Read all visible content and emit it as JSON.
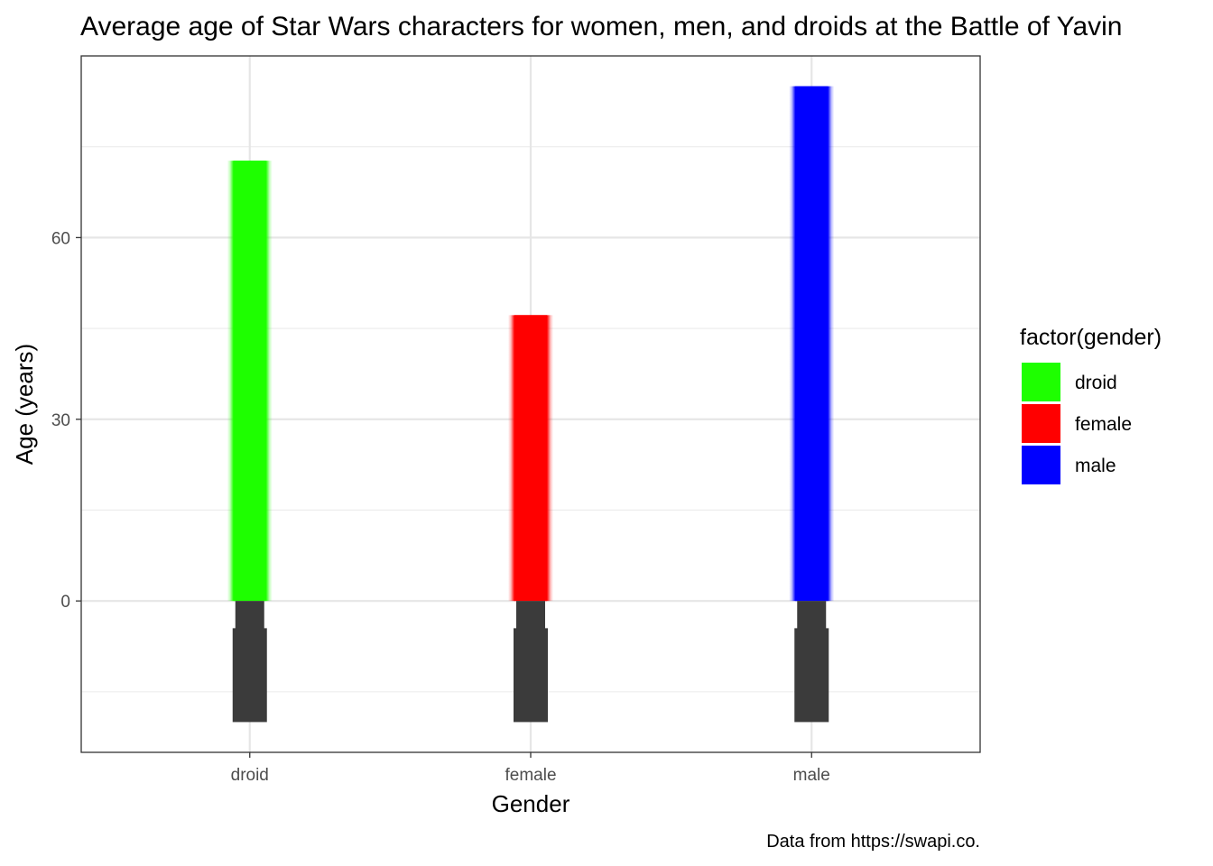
{
  "chart_data": {
    "type": "bar",
    "title": "Average age of Star Wars characters for women, men, and droids at the Battle of Yavin",
    "xlabel": "Gender",
    "ylabel": "Age (years)",
    "caption": "Data from https://swapi.co.",
    "categories": [
      "droid",
      "female",
      "male"
    ],
    "values": [
      72.7,
      47.2,
      85.0
    ],
    "colors": [
      "#1eff00",
      "#ff0000",
      "#0000ff"
    ],
    "hilt_color": "#3b3b3b",
    "ylim": [
      -25,
      90
    ],
    "yticks": [
      0,
      30,
      60
    ],
    "grid": true,
    "legend": {
      "title": "factor(gender)",
      "position": "right",
      "entries": [
        {
          "label": "droid",
          "color": "#1eff00"
        },
        {
          "label": "female",
          "color": "#ff0000"
        },
        {
          "label": "male",
          "color": "#0000ff"
        }
      ]
    }
  }
}
